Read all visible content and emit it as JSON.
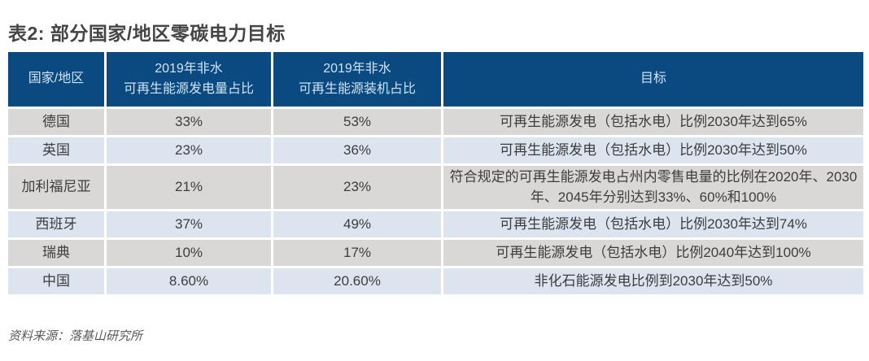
{
  "title": "表2: 部分国家/地区零碳电力目标",
  "source_note": "资料来源：落基山研究所",
  "colors": {
    "header_bg": "#0b4a80",
    "header_text": "#cfe3f3",
    "row_gray_bg": "#d9d8d6",
    "row_blue_bg": "#dce4ef",
    "cell_text": "#3d3d3d",
    "title_text": "#454545",
    "source_text": "#595959"
  },
  "table": {
    "headers": {
      "region": "国家/地区",
      "gen_share": "2019年非水\n可再生能源发电量占比",
      "cap_share": "2019年非水\n可再生能源装机占比",
      "target": "目标"
    },
    "rows": [
      {
        "region": "德国",
        "gen_share": "33%",
        "cap_share": "53%",
        "target": "可再生能源发电（包括水电）比例2030年达到65%"
      },
      {
        "region": "英国",
        "gen_share": "23%",
        "cap_share": "36%",
        "target": "可再生能源发电（包括水电）比例2030年达到50%"
      },
      {
        "region": "加利福尼亚",
        "gen_share": "21%",
        "cap_share": "23%",
        "target": "符合规定的可再生能源发电占州内零售电量的比例在2020年、2030年、2045年分别达到33%、60%和100%"
      },
      {
        "region": "西班牙",
        "gen_share": "37%",
        "cap_share": "49%",
        "target": "可再生能源发电（包括水电）比例2030年达到74%"
      },
      {
        "region": "瑞典",
        "gen_share": "10%",
        "cap_share": "17%",
        "target": "可再生能源发电（包括水电）比例2040年达到100%"
      },
      {
        "region": "中国",
        "gen_share": "8.60%",
        "cap_share": "20.60%",
        "target": "非化石能源发电比例到2030年达到50%"
      }
    ]
  }
}
